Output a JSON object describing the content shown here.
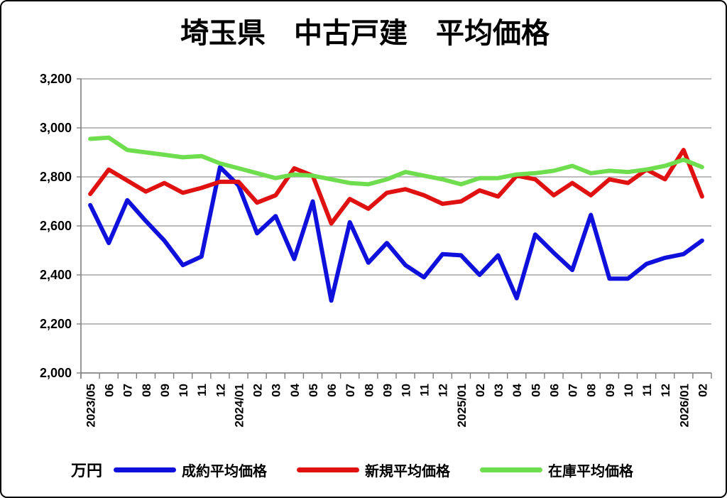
{
  "page": {
    "title": "埼玉県　中古戸建　平均価格"
  },
  "chart_data": {
    "type": "line",
    "title": "埼玉県　中古戸建　平均価格",
    "unit": "万円",
    "ylim": [
      2000,
      3200
    ],
    "ytick_step": 200,
    "grid": true,
    "legend_position": "bottom",
    "categories": [
      "2023/05",
      "06",
      "07",
      "08",
      "09",
      "10",
      "11",
      "12",
      "2024/01",
      "02",
      "03",
      "04",
      "05",
      "06",
      "07",
      "08",
      "09",
      "10",
      "11",
      "12",
      "2025/01",
      "02",
      "03",
      "04",
      "05",
      "06",
      "07",
      "08",
      "09",
      "10",
      "11",
      "12",
      "2026/01",
      "02"
    ],
    "series": [
      {
        "name": "成約平均価格",
        "color": "#1010dd",
        "values": [
          2685,
          2530,
          2705,
          2620,
          2540,
          2440,
          2475,
          2840,
          2765,
          2570,
          2640,
          2465,
          2700,
          2295,
          2615,
          2450,
          2530,
          2440,
          2390,
          2485,
          2480,
          2400,
          2480,
          2305,
          2565,
          2490,
          2420,
          2645,
          2385,
          2385,
          2445,
          2470,
          2485,
          2540
        ]
      },
      {
        "name": "新規平均価格",
        "color": "#e01111",
        "values": [
          2730,
          2830,
          2785,
          2740,
          2775,
          2735,
          2755,
          2780,
          2780,
          2695,
          2725,
          2835,
          2805,
          2610,
          2710,
          2670,
          2735,
          2750,
          2725,
          2690,
          2700,
          2745,
          2720,
          2805,
          2790,
          2725,
          2775,
          2725,
          2790,
          2775,
          2830,
          2790,
          2910,
          2720
        ]
      },
      {
        "name": "在庫平均価格",
        "color": "#6ede4e",
        "values": [
          2955,
          2960,
          2910,
          2900,
          2890,
          2880,
          2885,
          2855,
          2835,
          2815,
          2795,
          2810,
          2805,
          2790,
          2775,
          2770,
          2790,
          2820,
          2805,
          2790,
          2770,
          2795,
          2795,
          2810,
          2815,
          2825,
          2845,
          2815,
          2825,
          2820,
          2830,
          2845,
          2870,
          2840
        ]
      }
    ],
    "style": {
      "gridline_color": "#a6a6a6",
      "axis_color": "#7f7f7f",
      "text_color": "#000000"
    }
  }
}
